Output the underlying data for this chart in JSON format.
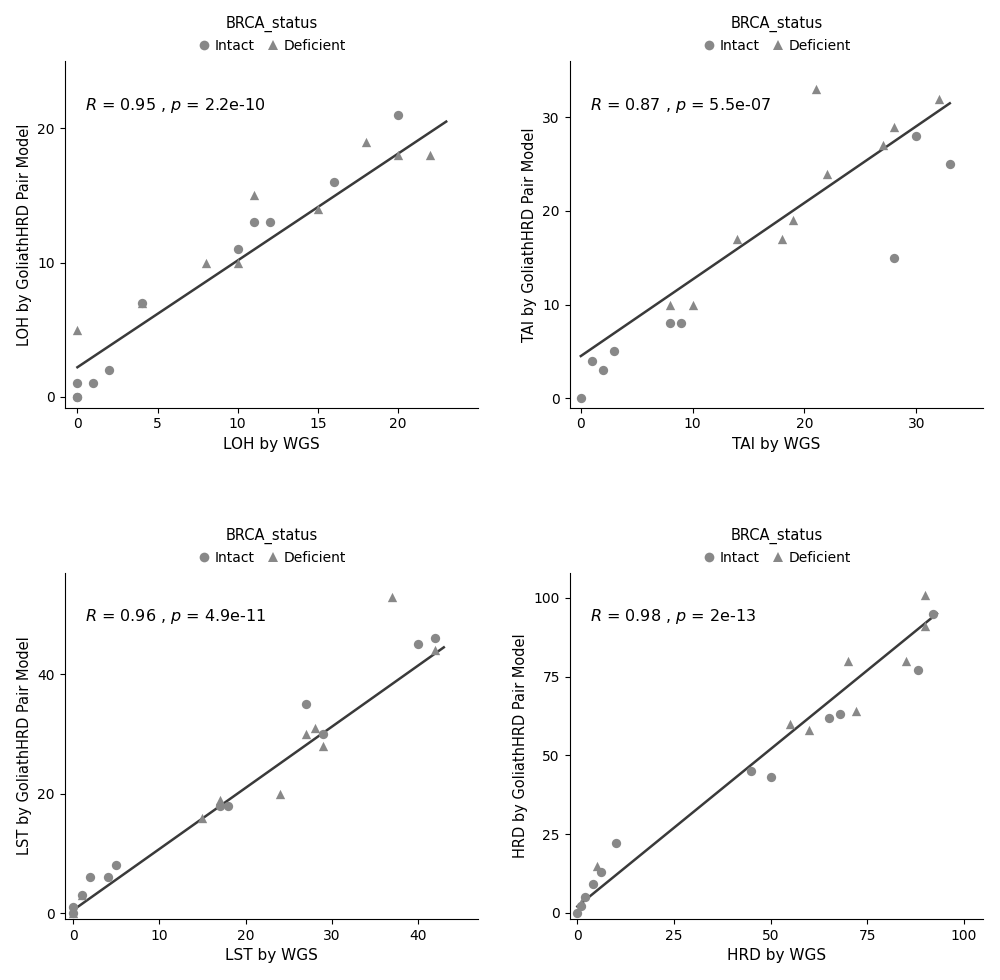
{
  "plots": [
    {
      "xlabel": "LOH by WGS",
      "ylabel": "LOH by GoliathHRD Pair Model",
      "R": "0.95",
      "p": "2.2e-10",
      "intact_x": [
        0,
        0,
        0,
        1,
        2,
        4,
        10,
        11,
        12,
        16,
        20
      ],
      "intact_y": [
        0,
        0,
        1,
        1,
        2,
        7,
        11,
        13,
        13,
        16,
        21
      ],
      "deficient_x": [
        0,
        4,
        8,
        10,
        11,
        15,
        18,
        20,
        22
      ],
      "deficient_y": [
        5,
        7,
        10,
        10,
        15,
        14,
        19,
        18,
        18
      ],
      "line_x": [
        0,
        23
      ],
      "line_y": [
        2.2,
        20.5
      ],
      "xlim": [
        -0.8,
        25
      ],
      "ylim": [
        -0.8,
        25
      ],
      "xticks": [
        0,
        5,
        10,
        15,
        20
      ],
      "yticks": [
        0,
        10,
        20
      ]
    },
    {
      "xlabel": "TAI by WGS",
      "ylabel": "TAI by GoliathHRD Pair Model",
      "R": "0.87",
      "p": "5.5e-07",
      "intact_x": [
        0,
        1,
        2,
        3,
        8,
        9,
        28,
        30,
        33
      ],
      "intact_y": [
        0,
        4,
        3,
        5,
        8,
        8,
        15,
        28,
        25
      ],
      "deficient_x": [
        8,
        10,
        14,
        18,
        19,
        21,
        22,
        27,
        28,
        32
      ],
      "deficient_y": [
        10,
        10,
        17,
        17,
        19,
        33,
        24,
        27,
        29,
        32
      ],
      "line_x": [
        0,
        33
      ],
      "line_y": [
        4.5,
        31.5
      ],
      "xlim": [
        -1,
        36
      ],
      "ylim": [
        -1,
        36
      ],
      "xticks": [
        0,
        10,
        20,
        30
      ],
      "yticks": [
        0,
        10,
        20,
        30
      ]
    },
    {
      "xlabel": "LST by WGS",
      "ylabel": "LST by GoliathHRD Pair Model",
      "R": "0.96",
      "p": "4.9e-11",
      "intact_x": [
        0,
        0,
        1,
        2,
        4,
        5,
        17,
        18,
        27,
        29,
        40,
        42
      ],
      "intact_y": [
        0,
        1,
        3,
        6,
        6,
        8,
        18,
        18,
        35,
        30,
        45,
        46
      ],
      "deficient_x": [
        0,
        1,
        15,
        17,
        24,
        27,
        28,
        29,
        37,
        42
      ],
      "deficient_y": [
        0,
        3,
        16,
        19,
        20,
        30,
        31,
        28,
        53,
        44
      ],
      "line_x": [
        0,
        43
      ],
      "line_y": [
        0.5,
        44.5
      ],
      "xlim": [
        -1,
        47
      ],
      "ylim": [
        -1,
        57
      ],
      "xticks": [
        0,
        10,
        20,
        30,
        40
      ],
      "yticks": [
        0,
        20,
        40
      ]
    },
    {
      "xlabel": "HRD by WGS",
      "ylabel": "HRD by GoliathHRD Pair Model",
      "R": "0.98",
      "p": "2e-13",
      "intact_x": [
        0,
        1,
        2,
        4,
        6,
        10,
        45,
        50,
        65,
        68,
        88,
        92
      ],
      "intact_y": [
        0,
        2,
        5,
        9,
        13,
        22,
        45,
        43,
        62,
        63,
        77,
        95
      ],
      "deficient_x": [
        1,
        5,
        55,
        60,
        70,
        72,
        85,
        90,
        90
      ],
      "deficient_y": [
        3,
        15,
        60,
        58,
        80,
        64,
        80,
        91,
        101
      ],
      "line_x": [
        0,
        93
      ],
      "line_y": [
        2,
        95
      ],
      "xlim": [
        -2,
        105
      ],
      "ylim": [
        -2,
        108
      ],
      "xticks": [
        0,
        25,
        50,
        75,
        100
      ],
      "yticks": [
        0,
        25,
        50,
        75,
        100
      ]
    }
  ],
  "point_color": "#888888",
  "line_color": "#3a3a3a",
  "marker_size": 45,
  "legend_title": "BRCA_status",
  "legend_intact": "Intact",
  "legend_deficient": "Deficient",
  "background_color": "#ffffff",
  "annotation_fontsize": 11.5
}
